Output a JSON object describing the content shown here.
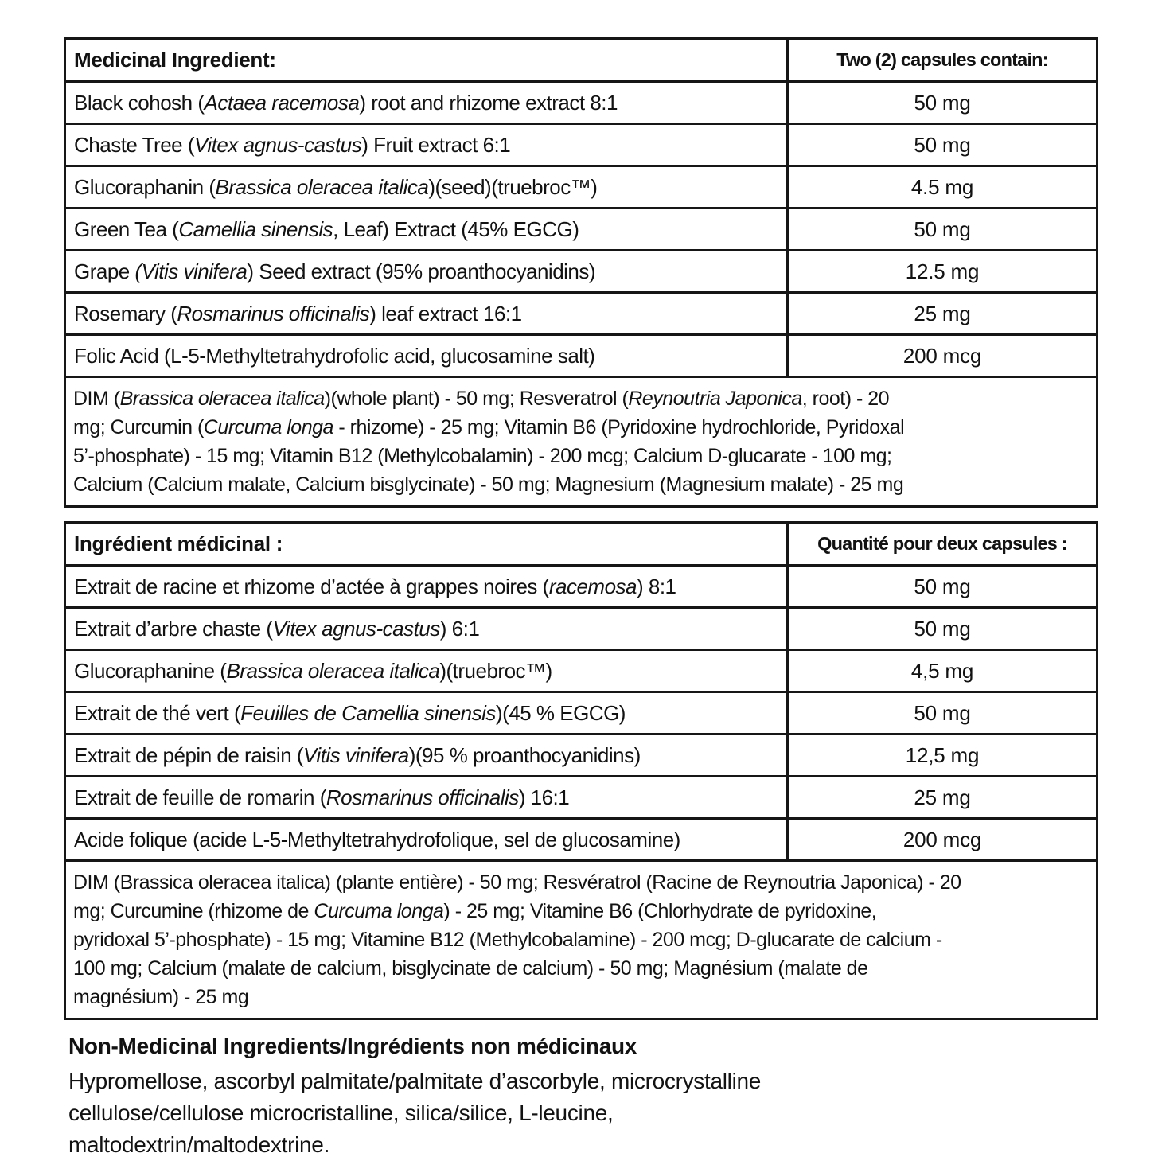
{
  "en_table": {
    "header": {
      "ingredient_col": "Medicinal Ingredient:",
      "amount_col": "Two (2) capsules contain:"
    },
    "rows": [
      {
        "name": "Black cohosh (*Actaea racemosa*) root and rhizome extract 8:1",
        "amount": "50 mg"
      },
      {
        "name": "Chaste Tree (*Vitex agnus-castus*) Fruit extract 6:1",
        "amount": "50 mg"
      },
      {
        "name": "Glucoraphanin (*Brassica oleracea italica*)(seed)(truebroc™)",
        "amount": "4.5 mg"
      },
      {
        "name": "Green Tea (*Camellia sinensis*, Leaf) Extract (45% EGCG)",
        "amount": "50 mg"
      },
      {
        "name": "Grape *(Vitis vinifera*) Seed extract (95% proanthocyanidins)",
        "amount": "12.5 mg"
      },
      {
        "name": "Rosemary (*Rosmarinus officinalis*) leaf extract 16:1",
        "amount": "25 mg"
      },
      {
        "name": "Folic Acid (L-5-Methyltetrahydrofolic acid, glucosamine salt)",
        "amount": "200 mcg"
      }
    ],
    "combined_row": "DIM (*Brassica oleracea italica*)(whole plant) - 50 mg; Resveratrol (*Reynoutria Japonica*, root) - 20\nmg; Curcumin (*Curcuma longa* - rhizome) - 25 mg; Vitamin B6 (Pyridoxine hydrochloride, Pyridoxal\n5’-phosphate) - 15 mg; Vitamin B12 (Methylcobalamin) - 200 mcg; Calcium D-glucarate - 100 mg;\nCalcium (Calcium malate, Calcium bisglycinate) - 50 mg; Magnesium (Magnesium malate) - 25 mg"
  },
  "fr_table": {
    "header": {
      "ingredient_col": "Ingrédient médicinal :",
      "amount_col": "Quantité pour deux capsules :"
    },
    "rows": [
      {
        "name": "Extrait de racine et rhizome d’actée à grappes noires (*racemosa*) 8:1",
        "amount": "50 mg"
      },
      {
        "name": "Extrait d’arbre chaste (*Vitex agnus-castus*) 6:1",
        "amount": "50 mg"
      },
      {
        "name": "Glucoraphanine (*Brassica oleracea italica*)(truebroc™)",
        "amount": "4,5 mg"
      },
      {
        "name": "Extrait de thé vert (*Feuilles de Camellia sinensis*)(45 % EGCG)",
        "amount": "50 mg"
      },
      {
        "name": "Extrait de pépin de raisin (*Vitis vinifera*)(95 % proanthocyanidins)",
        "amount": "12,5 mg"
      },
      {
        "name": "Extrait de feuille de romarin (*Rosmarinus officinalis*) 16:1",
        "amount": "25 mg"
      },
      {
        "name": "Acide folique (acide L-5-Methyltetrahydrofolique, sel de glucosamine)",
        "amount": "200 mcg"
      }
    ],
    "combined_row": "DIM (Brassica oleracea italica) (plante entière) - 50 mg; Resvératrol (Racine de Reynoutria Japonica) - 20\nmg; Curcumine (rhizome de *Curcuma longa*) - 25 mg; Vitamine B6 (Chlorhydrate de pyridoxine,\npyridoxal 5’-phosphate) - 15 mg; Vitamine B12 (Methylcobalamine) - 200 mcg; D-glucarate de calcium -\n100 mg; Calcium (malate de calcium, bisglycinate de calcium) - 50 mg; Magnésium (malate de\nmagnésium) - 25 mg"
  },
  "non_medicinal": {
    "title": "Non-Medicinal Ingredients/Ingrédients non médicinaux",
    "text": "Hypromellose, ascorbyl palmitate/palmitate d’ascorbyle, microcrystalline\ncellulose/cellulose microcristalline, silica/silice, L-leucine,\nmaltodextrin/maltodextrine."
  }
}
